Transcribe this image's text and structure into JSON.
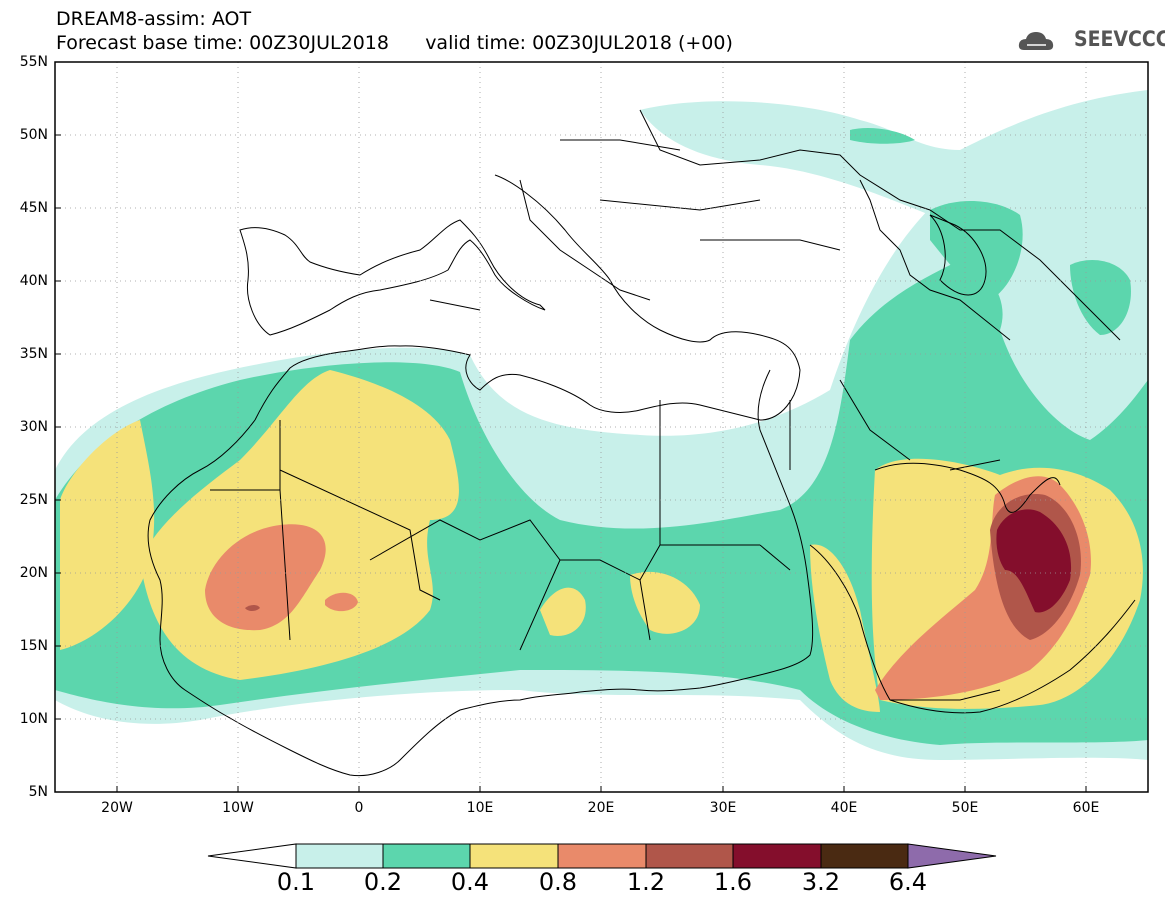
{
  "header": {
    "line1": "DREAM8-assim: AOT",
    "line2": "Forecast base time: 00Z30JUL2018      valid time: 00Z30JUL2018 (+00)",
    "logo_text": "SEEVCCC"
  },
  "map": {
    "lat_labels": [
      "55N",
      "50N",
      "45N",
      "40N",
      "35N",
      "30N",
      "25N",
      "20N",
      "15N",
      "10N",
      "5N"
    ],
    "lon_labels": [
      "20W",
      "10W",
      "0",
      "10E",
      "20E",
      "30E",
      "40E",
      "50E",
      "60E"
    ],
    "colorbar": {
      "labels": [
        "0.1",
        "0.2",
        "0.4",
        "0.8",
        "1.2",
        "1.6",
        "3.2",
        "6.4"
      ],
      "colors": [
        "#ffffff",
        "#c8f0ea",
        "#5cd6ad",
        "#f5e27a",
        "#e98a6a",
        "#b0564a",
        "#840e2c",
        "#4a2a12",
        "#8e6bab"
      ]
    }
  }
}
